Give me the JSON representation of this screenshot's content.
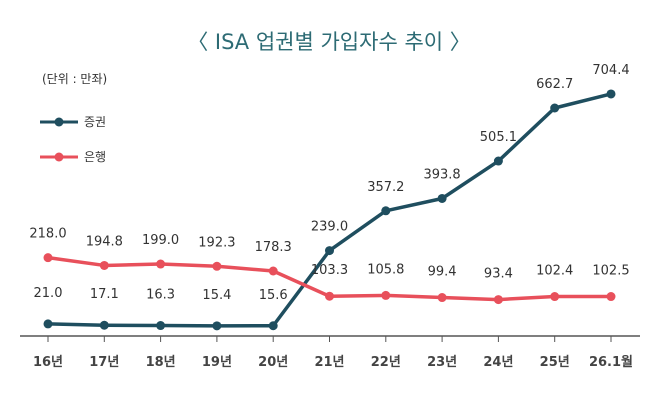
{
  "chart_data": {
    "type": "line",
    "title": "〈 ISA 업권별 가입자수 추이 〉",
    "unit": "(단위 : 만좌)",
    "categories": [
      "16년",
      "17년",
      "18년",
      "19년",
      "20년",
      "21년",
      "22년",
      "23년",
      "24년",
      "25년",
      "26.1월"
    ],
    "ylim": [
      0,
      750
    ],
    "grid": false,
    "legend_position": "top-left",
    "series": [
      {
        "name": "증권",
        "color": "#1f4e5f",
        "values": [
          21.0,
          17.1,
          16.3,
          15.4,
          15.6,
          239.0,
          357.2,
          393.8,
          505.1,
          662.7,
          704.4
        ],
        "labels": [
          "21.0",
          "17.1",
          "16.3",
          "15.4",
          "15.6",
          "239.0",
          "357.2",
          "393.8",
          "505.1",
          "662.7",
          "704.4"
        ]
      },
      {
        "name": "은행",
        "color": "#e8505b",
        "values": [
          218.0,
          194.8,
          199.0,
          192.3,
          178.3,
          103.3,
          105.8,
          99.4,
          93.4,
          102.4,
          102.5
        ],
        "labels": [
          "218.0",
          "194.8",
          "199.0",
          "192.3",
          "178.3",
          "103.3",
          "105.8",
          "99.4",
          "93.4",
          "102.4",
          "102.5"
        ]
      }
    ]
  }
}
